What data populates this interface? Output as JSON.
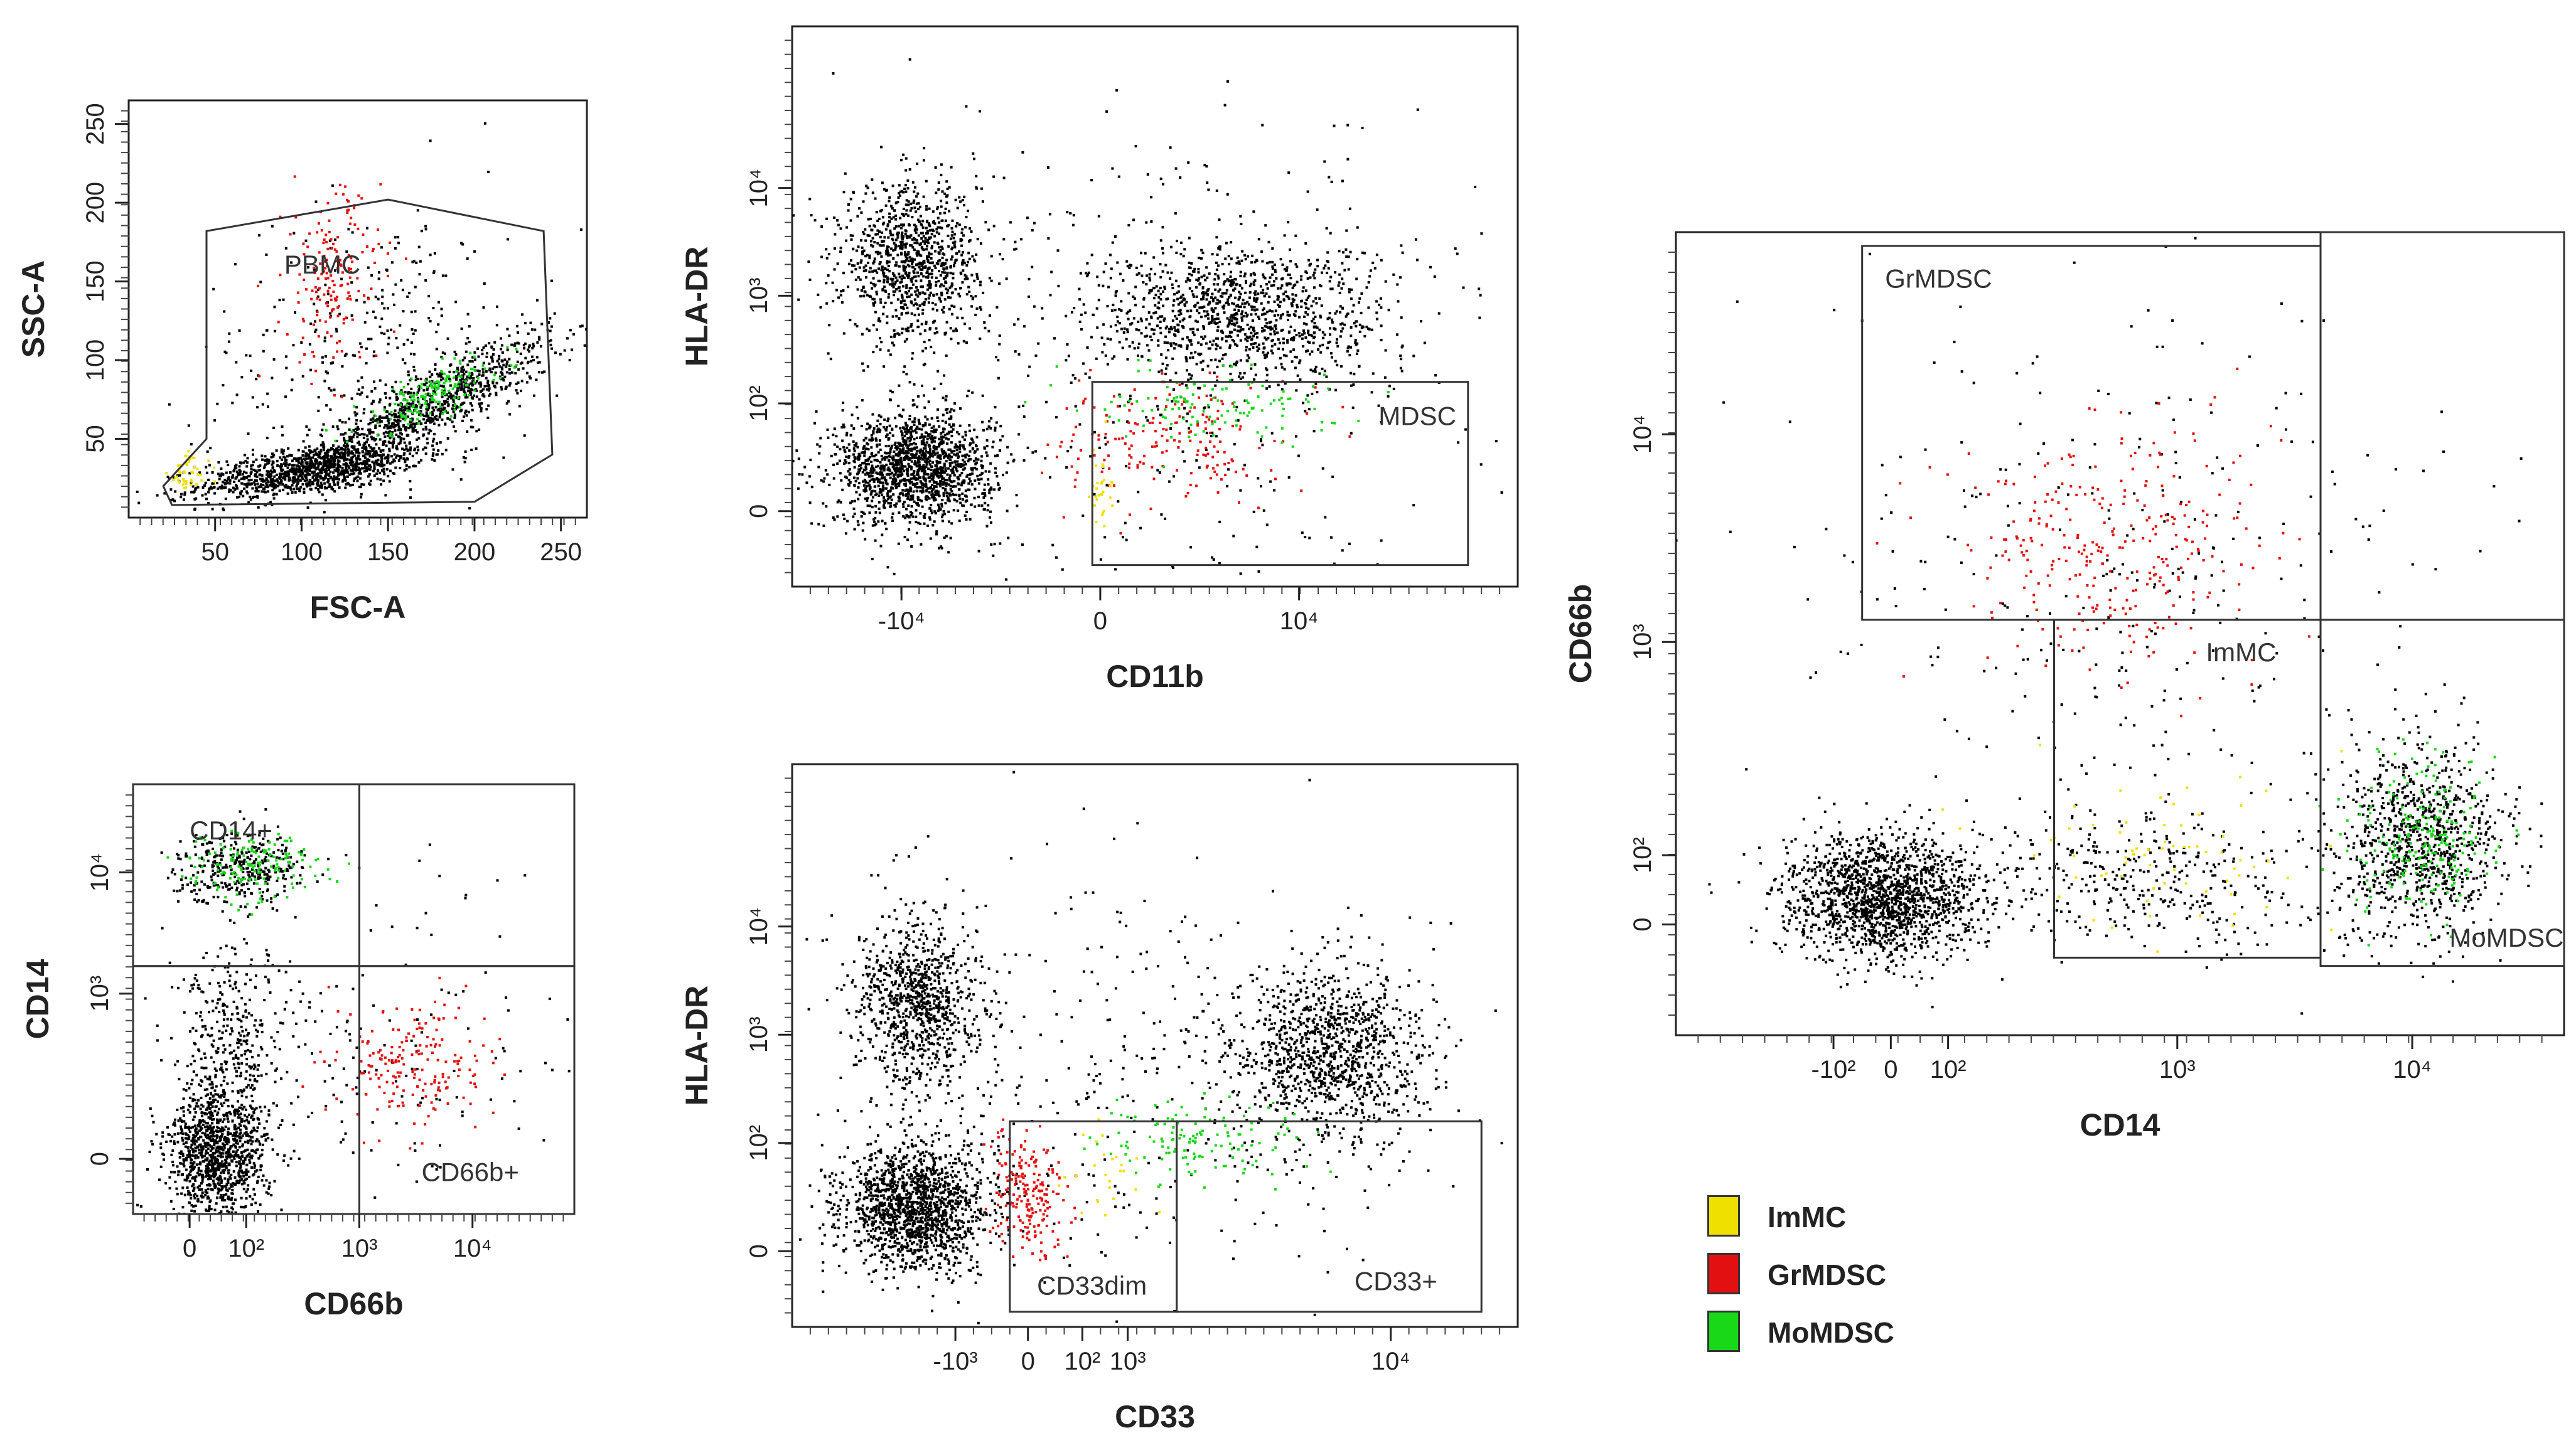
{
  "colors": {
    "ImMC": "#f0e000",
    "GrMDSC": "#e21010",
    "MoMDSC": "#18d818",
    "events": "#000000"
  },
  "legend": [
    {
      "name": "ImMC",
      "color": "#f0e000"
    },
    {
      "name": "GrMDSC",
      "color": "#e21010"
    },
    {
      "name": "MoMDSC",
      "color": "#18d818"
    }
  ],
  "chart_data": [
    {
      "type": "scatter",
      "panel": "fsc-ssc",
      "xlabel": "FSC-A",
      "ylabel": "SSC-A",
      "xlim": [
        0,
        265
      ],
      "ylim": [
        0,
        265
      ],
      "xticks": [
        {
          "v": 50,
          "label": "50"
        },
        {
          "v": 100,
          "label": "100"
        },
        {
          "v": 150,
          "label": "150"
        },
        {
          "v": 200,
          "label": "200"
        },
        {
          "v": 250,
          "label": "250"
        }
      ],
      "yticks": [
        {
          "v": 50,
          "label": "50"
        },
        {
          "v": 100,
          "label": "100"
        },
        {
          "v": 150,
          "label": "150"
        },
        {
          "v": 200,
          "label": "200"
        },
        {
          "v": 250,
          "label": "250"
        }
      ],
      "clusters": [
        {
          "pop": "events",
          "cx": 105,
          "cy": 30,
          "sx": 32,
          "sy": 9,
          "n": 1100,
          "rho": 0.55
        },
        {
          "pop": "events",
          "cx": 175,
          "cy": 72,
          "sx": 35,
          "sy": 22,
          "n": 900,
          "rho": 0.85
        },
        {
          "pop": "events",
          "cx": 140,
          "cy": 110,
          "sx": 50,
          "sy": 45,
          "n": 350,
          "rho": 0.2
        },
        {
          "pop": "GrMDSC",
          "cx": 118,
          "cy": 150,
          "sx": 14,
          "sy": 30,
          "n": 170,
          "rho": 0.1
        },
        {
          "pop": "MoMDSC",
          "cx": 175,
          "cy": 78,
          "sx": 22,
          "sy": 13,
          "n": 160,
          "rho": 0.8
        },
        {
          "pop": "ImMC",
          "cx": 35,
          "cy": 28,
          "sx": 6,
          "sy": 7,
          "n": 45,
          "rho": 0
        }
      ],
      "gates": [
        {
          "label": "PBMC",
          "shape": "polygon",
          "points": [
            [
              45,
              50
            ],
            [
              20,
              20
            ],
            [
              25,
              8
            ],
            [
              200,
              10
            ],
            [
              245,
              40
            ],
            [
              240,
              182
            ],
            [
              150,
              202
            ],
            [
              45,
              182
            ]
          ],
          "label_at": [
            90,
            155
          ]
        }
      ]
    },
    {
      "type": "scatter",
      "panel": "cd11b-hladr",
      "xlabel": "CD11b",
      "ylabel": "HLA-DR",
      "xlim": [
        -1.55,
        2.1
      ],
      "ylim": [
        -0.35,
        2.25
      ],
      "xticks": [
        {
          "v": -1,
          "label": "-10⁴"
        },
        {
          "v": 0,
          "label": "0"
        },
        {
          "v": 1,
          "label": "10⁴"
        }
      ],
      "yticks": [
        {
          "v": 0,
          "label": "0"
        },
        {
          "v": 0.5,
          "label": "10²"
        },
        {
          "v": 1.0,
          "label": "10³"
        },
        {
          "v": 1.5,
          "label": "10⁴"
        }
      ],
      "clusters": [
        {
          "pop": "events",
          "cx": -0.95,
          "cy": 1.15,
          "sx": 0.17,
          "sy": 0.18,
          "n": 1000,
          "rho": 0
        },
        {
          "pop": "events",
          "cx": -0.93,
          "cy": 0.2,
          "sx": 0.2,
          "sy": 0.13,
          "n": 1500,
          "rho": 0
        },
        {
          "pop": "events",
          "cx": 0.7,
          "cy": 0.92,
          "sx": 0.38,
          "sy": 0.16,
          "n": 1100,
          "rho": 0
        },
        {
          "pop": "events",
          "cx": 0.3,
          "cy": 0.7,
          "sx": 0.8,
          "sy": 0.6,
          "n": 420,
          "rho": 0
        },
        {
          "pop": "GrMDSC",
          "cx": 0.35,
          "cy": 0.33,
          "sx": 0.28,
          "sy": 0.14,
          "n": 180,
          "rho": 0
        },
        {
          "pop": "MoMDSC",
          "cx": 0.6,
          "cy": 0.5,
          "sx": 0.3,
          "sy": 0.09,
          "n": 120,
          "rho": 0
        },
        {
          "pop": "ImMC",
          "cx": 0.0,
          "cy": 0.1,
          "sx": 0.03,
          "sy": 0.1,
          "n": 30,
          "rho": 0
        }
      ],
      "gates": [
        {
          "label": "MDSC",
          "shape": "rect",
          "x0": -0.04,
          "x1": 1.85,
          "y0": -0.25,
          "y1": 0.6,
          "label_at": [
            1.4,
            0.4
          ]
        }
      ]
    },
    {
      "type": "scatter",
      "panel": "cd66b-cd14-small",
      "xlabel": "CD66b",
      "ylabel": "CD14",
      "xlim": [
        -0.5,
        3.4
      ],
      "ylim": [
        -0.5,
        3.4
      ],
      "xticks": [
        {
          "v": 0,
          "label": "0"
        },
        {
          "v": 0.5,
          "label": "10²"
        },
        {
          "v": 1.5,
          "label": "10³"
        },
        {
          "v": 2.5,
          "label": "10⁴"
        }
      ],
      "yticks": [
        {
          "v": 0,
          "label": "0"
        },
        {
          "v": 1.5,
          "label": "10³"
        },
        {
          "v": 2.6,
          "label": "10⁴"
        }
      ],
      "clusters": [
        {
          "pop": "events",
          "cx": 0.25,
          "cy": 0.05,
          "sx": 0.22,
          "sy": 0.3,
          "n": 1100,
          "rho": 0
        },
        {
          "pop": "events",
          "cx": 0.4,
          "cy": 1.0,
          "sx": 0.25,
          "sy": 0.45,
          "n": 350,
          "rho": 0
        },
        {
          "pop": "events",
          "cx": 0.45,
          "cy": 2.65,
          "sx": 0.28,
          "sy": 0.16,
          "n": 350,
          "rho": 0
        },
        {
          "pop": "events",
          "cx": 1.8,
          "cy": 1.0,
          "sx": 0.8,
          "sy": 0.8,
          "n": 140,
          "rho": 0
        },
        {
          "pop": "MoMDSC",
          "cx": 0.55,
          "cy": 2.65,
          "sx": 0.3,
          "sy": 0.14,
          "n": 150,
          "rho": 0
        },
        {
          "pop": "GrMDSC",
          "cx": 2.0,
          "cy": 0.85,
          "sx": 0.32,
          "sy": 0.3,
          "n": 190,
          "rho": 0
        }
      ],
      "gates": [
        {
          "label": "CD14+",
          "shape": "rect",
          "x0": -0.5,
          "x1": 1.5,
          "y0": 1.75,
          "y1": 3.4,
          "label_at": [
            0.0,
            2.9
          ]
        },
        {
          "label": "",
          "shape": "rect",
          "x0": 1.5,
          "x1": 3.4,
          "y0": 1.75,
          "y1": 3.4,
          "label_at": [
            2.4,
            2.9
          ]
        },
        {
          "label": "",
          "shape": "rect",
          "x0": -0.5,
          "x1": 1.5,
          "y0": -0.5,
          "y1": 1.75,
          "label_at": [
            0,
            0
          ]
        },
        {
          "label": "CD66b+",
          "shape": "rect",
          "x0": 1.5,
          "x1": 3.4,
          "y0": -0.5,
          "y1": 1.75,
          "label_at": [
            2.05,
            -0.2
          ]
        }
      ]
    },
    {
      "type": "scatter",
      "panel": "cd33-hladr",
      "xlabel": "CD33",
      "ylabel": "HLA-DR",
      "xlim": [
        -1.3,
        2.7
      ],
      "ylim": [
        -0.35,
        2.25
      ],
      "xticks": [
        {
          "v": -0.4,
          "label": "-10³"
        },
        {
          "v": 0,
          "label": "0"
        },
        {
          "v": 0.3,
          "label": "10²"
        },
        {
          "v": 0.55,
          "label": "10³"
        },
        {
          "v": 2.0,
          "label": "10⁴"
        }
      ],
      "yticks": [
        {
          "v": 0,
          "label": "0"
        },
        {
          "v": 0.5,
          "label": "10²"
        },
        {
          "v": 1.0,
          "label": "10³"
        },
        {
          "v": 1.5,
          "label": "10⁴"
        }
      ],
      "clusters": [
        {
          "pop": "events",
          "cx": -0.6,
          "cy": 1.15,
          "sx": 0.17,
          "sy": 0.2,
          "n": 900,
          "rho": 0
        },
        {
          "pop": "events",
          "cx": -0.62,
          "cy": 0.2,
          "sx": 0.2,
          "sy": 0.14,
          "n": 1500,
          "rho": 0
        },
        {
          "pop": "events",
          "cx": 1.65,
          "cy": 0.9,
          "sx": 0.27,
          "sy": 0.2,
          "n": 1100,
          "rho": 0
        },
        {
          "pop": "events",
          "cx": 0.6,
          "cy": 0.8,
          "sx": 1.0,
          "sy": 0.55,
          "n": 400,
          "rho": 0
        },
        {
          "pop": "GrMDSC",
          "cx": 0.0,
          "cy": 0.25,
          "sx": 0.1,
          "sy": 0.14,
          "n": 200,
          "rho": 0
        },
        {
          "pop": "MoMDSC",
          "cx": 1.0,
          "cy": 0.5,
          "sx": 0.3,
          "sy": 0.1,
          "n": 130,
          "rho": 0
        },
        {
          "pop": "ImMC",
          "cx": 0.45,
          "cy": 0.35,
          "sx": 0.1,
          "sy": 0.12,
          "n": 25,
          "rho": 0
        }
      ],
      "gates": [
        {
          "label": "CD33dim",
          "shape": "rect",
          "x0": -0.1,
          "x1": 0.82,
          "y0": -0.28,
          "y1": 0.6,
          "label_at": [
            0.05,
            -0.2
          ]
        },
        {
          "label": "CD33+",
          "shape": "rect",
          "x0": 0.82,
          "x1": 2.5,
          "y0": -0.28,
          "y1": 0.6,
          "label_at": [
            1.8,
            -0.18
          ]
        }
      ]
    },
    {
      "type": "scatter",
      "panel": "cd14-cd66b-large",
      "xlabel": "CD14",
      "ylabel": "CD66b",
      "xlim": [
        -0.75,
        2.35
      ],
      "ylim": [
        -0.4,
        2.5
      ],
      "xticks": [
        {
          "v": -0.2,
          "label": "-10²"
        },
        {
          "v": 0,
          "label": "0"
        },
        {
          "v": 0.2,
          "label": "10²"
        },
        {
          "v": 1.0,
          "label": "10³"
        },
        {
          "v": 1.82,
          "label": "10⁴"
        }
      ],
      "yticks": [
        {
          "v": 0,
          "label": "0"
        },
        {
          "v": 0.25,
          "label": "10²"
        },
        {
          "v": 1.02,
          "label": "10³"
        },
        {
          "v": 1.77,
          "label": "10⁴"
        }
      ],
      "clusters": [
        {
          "pop": "events",
          "cx": -0.03,
          "cy": 0.1,
          "sx": 0.17,
          "sy": 0.11,
          "n": 1600,
          "rho": 0
        },
        {
          "pop": "events",
          "cx": 1.85,
          "cy": 0.3,
          "sx": 0.15,
          "sy": 0.17,
          "n": 900,
          "rho": 0
        },
        {
          "pop": "events",
          "cx": 0.85,
          "cy": 0.15,
          "sx": 0.35,
          "sy": 0.12,
          "n": 380,
          "rho": 0
        },
        {
          "pop": "events",
          "cx": 0.8,
          "cy": 1.2,
          "sx": 0.6,
          "sy": 0.6,
          "n": 320,
          "rho": 0
        },
        {
          "pop": "GrMDSC",
          "cx": 0.75,
          "cy": 1.38,
          "sx": 0.26,
          "sy": 0.22,
          "n": 300,
          "rho": 0
        },
        {
          "pop": "MoMDSC",
          "cx": 1.85,
          "cy": 0.3,
          "sx": 0.12,
          "sy": 0.16,
          "n": 220,
          "rho": 0
        },
        {
          "pop": "ImMC",
          "cx": 0.95,
          "cy": 0.25,
          "sx": 0.25,
          "sy": 0.15,
          "n": 70,
          "rho": 0
        }
      ],
      "gates": [
        {
          "label": "GrMDSC",
          "shape": "rect",
          "x0": -0.1,
          "x1": 1.5,
          "y0": 1.1,
          "y1": 2.45,
          "label_at": [
            -0.02,
            2.3
          ]
        },
        {
          "label": "",
          "shape": "rect",
          "x0": 1.5,
          "x1": 2.35,
          "y0": 1.1,
          "y1": 2.5,
          "label_at": [
            0,
            0
          ]
        },
        {
          "label": "ImMC",
          "shape": "rect",
          "x0": 0.57,
          "x1": 1.5,
          "y0": -0.12,
          "y1": 1.1,
          "label_at": [
            1.1,
            0.95
          ]
        },
        {
          "label": "MoMDSC",
          "shape": "rect",
          "x0": 1.5,
          "x1": 2.35,
          "y0": -0.15,
          "y1": 1.1,
          "label_at": [
            1.95,
            -0.08
          ]
        }
      ]
    }
  ]
}
